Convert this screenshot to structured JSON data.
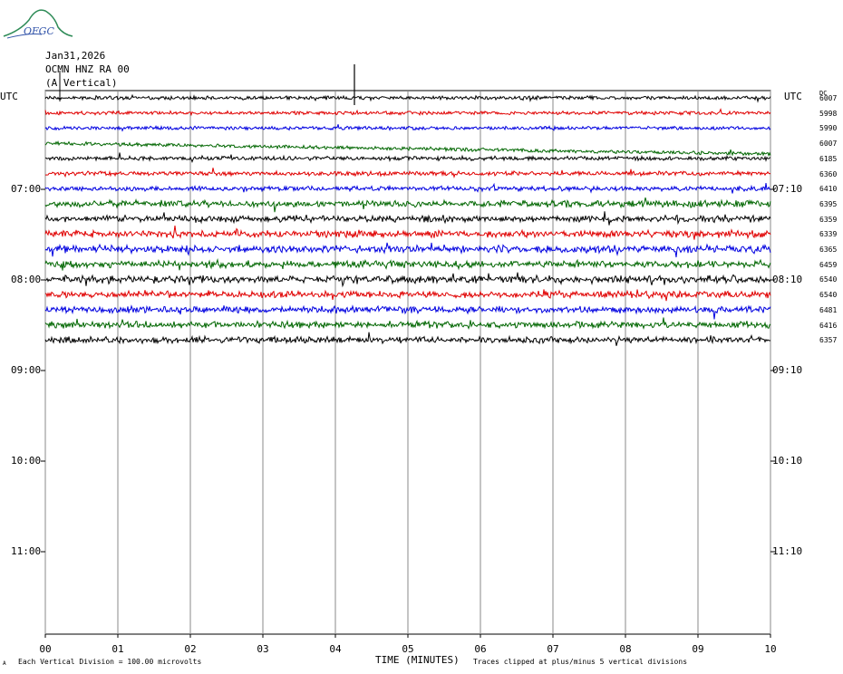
{
  "logo": {
    "text": "OFGC"
  },
  "header": {
    "date": "Jan31,2026",
    "station": "OCMN HNZ RA 00",
    "component": "(A Vertical)"
  },
  "labels": {
    "utc_left": "UTC",
    "utc_right": "UTC",
    "dc": "DC"
  },
  "left_times": [
    "07:00",
    "08:00",
    "09:00",
    "10:00",
    "11:00"
  ],
  "right_times": [
    "07:10",
    "08:10",
    "09:10",
    "10:10",
    "11:10"
  ],
  "dc_offsets": [
    "6007",
    "5998",
    "5990",
    "6007",
    "6185",
    "6360",
    "6410",
    "6395",
    "6359",
    "6339",
    "6365",
    "6459",
    "6540",
    "6540",
    "6481",
    "6416",
    "6357"
  ],
  "trace_colors": [
    "#000000",
    "#e00000",
    "#0000e0",
    "#006600"
  ],
  "footer": {
    "left_mark": "A",
    "scale": "Each Vertical Division = 100.00 microvolts",
    "axis_title": "TIME (MINUTES)",
    "clip_note": "Traces clipped at plus/minus 5 vertical divisions"
  },
  "chart_data": {
    "type": "line",
    "title": "OCMN HNZ RA 00 (A Vertical)",
    "xlabel": "TIME (MINUTES)",
    "ylabel": "UTC",
    "x_ticks": [
      "00",
      "01",
      "02",
      "03",
      "04",
      "05",
      "06",
      "07",
      "08",
      "09",
      "10"
    ],
    "xlim": [
      0,
      10
    ],
    "minutes_per_trace": 10,
    "trace_count": 17,
    "grid": true,
    "series": [
      {
        "dc": 6007,
        "color": "#000000",
        "activity": 0.35
      },
      {
        "dc": 5998,
        "color": "#e00000",
        "activity": 0.3
      },
      {
        "dc": 5990,
        "color": "#0000e0",
        "activity": 0.3
      },
      {
        "dc": 6007,
        "color": "#006600",
        "activity": 0.3
      },
      {
        "dc": 6185,
        "color": "#000000",
        "activity": 0.45
      },
      {
        "dc": 6360,
        "color": "#e00000",
        "activity": 0.5
      },
      {
        "dc": 6410,
        "color": "#0000e0",
        "activity": 0.55
      },
      {
        "dc": 6395,
        "color": "#006600",
        "activity": 1.0
      },
      {
        "dc": 6359,
        "color": "#000000",
        "activity": 1.0
      },
      {
        "dc": 6339,
        "color": "#e00000",
        "activity": 1.1
      },
      {
        "dc": 6365,
        "color": "#0000e0",
        "activity": 1.2
      },
      {
        "dc": 6459,
        "color": "#006600",
        "activity": 1.1
      },
      {
        "dc": 6540,
        "color": "#000000",
        "activity": 1.2
      },
      {
        "dc": 6540,
        "color": "#e00000",
        "activity": 1.0
      },
      {
        "dc": 6481,
        "color": "#0000e0",
        "activity": 1.0
      },
      {
        "dc": 6416,
        "color": "#006600",
        "activity": 1.0
      },
      {
        "dc": 6357,
        "color": "#000000",
        "activity": 0.9
      }
    ]
  }
}
